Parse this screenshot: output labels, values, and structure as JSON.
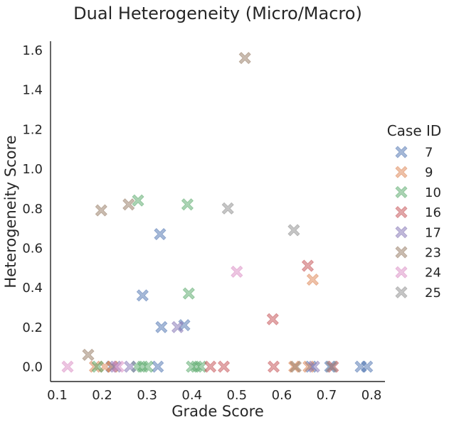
{
  "chart_data": {
    "type": "scatter",
    "title": "Dual Heterogeneity (Micro/Macro)",
    "xlabel": "Grade Score",
    "ylabel": "Heterogeneity Score",
    "xlim": [
      0.085,
      0.83
    ],
    "ylim": [
      -0.075,
      1.645
    ],
    "xticks": [
      "0.1",
      "0.2",
      "0.3",
      "0.4",
      "0.5",
      "0.6",
      "0.7",
      "0.8"
    ],
    "yticks": [
      "0.0",
      "0.2",
      "0.4",
      "0.6",
      "0.8",
      "1.0",
      "1.2",
      "1.4",
      "1.6"
    ],
    "grid": false,
    "marker": "X",
    "legend": {
      "title": "Case ID",
      "placement": "right-outside"
    },
    "series": [
      {
        "name": "7",
        "color": "#4c72b0",
        "points": [
          [
            0.221,
            0.0
          ],
          [
            0.324,
            0.0
          ],
          [
            0.329,
            0.67
          ],
          [
            0.29,
            0.36
          ],
          [
            0.332,
            0.2
          ],
          [
            0.383,
            0.21
          ],
          [
            0.665,
            0.0
          ],
          [
            0.708,
            0.0
          ],
          [
            0.776,
            0.0
          ],
          [
            0.79,
            0.0
          ]
        ]
      },
      {
        "name": "9",
        "color": "#dd8452",
        "points": [
          [
            0.184,
            0.0
          ],
          [
            0.206,
            0.0
          ],
          [
            0.223,
            0.0
          ],
          [
            0.628,
            0.0
          ],
          [
            0.66,
            0.0
          ],
          [
            0.669,
            0.44
          ]
        ]
      },
      {
        "name": "10",
        "color": "#55a868",
        "points": [
          [
            0.19,
            0.0
          ],
          [
            0.278,
            0.0
          ],
          [
            0.29,
            0.0
          ],
          [
            0.301,
            0.0
          ],
          [
            0.28,
            0.84
          ],
          [
            0.39,
            0.82
          ],
          [
            0.393,
            0.37
          ],
          [
            0.4,
            0.0
          ],
          [
            0.41,
            0.0
          ],
          [
            0.42,
            0.0
          ]
        ]
      },
      {
        "name": "16",
        "color": "#c44e52",
        "points": [
          [
            0.441,
            0.0
          ],
          [
            0.471,
            0.0
          ],
          [
            0.582,
            0.0
          ],
          [
            0.58,
            0.24
          ],
          [
            0.658,
            0.51
          ],
          [
            0.714,
            0.0
          ]
        ]
      },
      {
        "name": "17",
        "color": "#8172b3",
        "points": [
          [
            0.23,
            0.0
          ],
          [
            0.262,
            0.0
          ],
          [
            0.368,
            0.2
          ],
          [
            0.672,
            0.0
          ]
        ]
      },
      {
        "name": "23",
        "color": "#937860",
        "points": [
          [
            0.169,
            0.06
          ],
          [
            0.198,
            0.79
          ],
          [
            0.259,
            0.82
          ],
          [
            0.518,
            1.56
          ],
          [
            0.631,
            0.0
          ]
        ]
      },
      {
        "name": "24",
        "color": "#da8bc3",
        "points": [
          [
            0.123,
            0.0
          ],
          [
            0.236,
            0.0
          ],
          [
            0.5,
            0.48
          ]
        ]
      },
      {
        "name": "25",
        "color": "#8c8c8c",
        "points": [
          [
            0.48,
            0.8
          ],
          [
            0.627,
            0.69
          ],
          [
            0.711,
            0.0
          ]
        ]
      }
    ]
  }
}
